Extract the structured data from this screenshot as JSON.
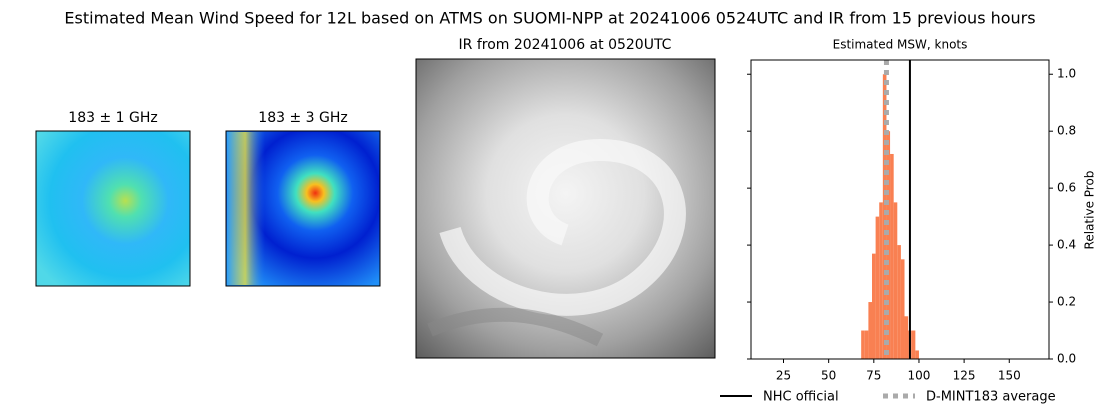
{
  "title": "Estimated Mean Wind Speed for 12L based on ATMS on SUOMI-NPP at 20241006 0524UTC and IR from 15 previous hours",
  "panels": [
    {
      "title": "183 ± 1 GHz"
    },
    {
      "title": "183 ± 3 GHz"
    },
    {
      "title": "IR from 20241006 at 0520UTC"
    }
  ],
  "chart_data": {
    "type": "histogram",
    "title": "Estimated MSW, knots",
    "y_label": "Relative Prob",
    "bins": [
      68,
      70,
      72,
      74,
      76,
      78,
      80,
      82,
      84,
      86,
      88,
      90,
      92,
      94,
      96,
      98,
      100
    ],
    "values": [
      0.1,
      0.1,
      0.2,
      0.37,
      0.5,
      0.55,
      1.0,
      0.8,
      0.72,
      0.55,
      0.4,
      0.35,
      0.15,
      0.1,
      0.1,
      0.03
    ],
    "color": "#f98052",
    "lines": [
      {
        "name": "NHC official",
        "value": 95,
        "color": "#000000",
        "style": "solid"
      },
      {
        "name": "D-MINT183 average",
        "value": 82,
        "color": "#aaaaaa",
        "style": "dotted"
      }
    ],
    "xlim": [
      7,
      172
    ],
    "xticks": [
      25,
      50,
      75,
      100,
      125,
      150
    ],
    "ylim": [
      0,
      1.05
    ],
    "yticks": [
      {
        "value": 0,
        "label": "0.0"
      },
      {
        "value": 0.2,
        "label": "0.2"
      },
      {
        "value": 0.4,
        "label": "0.4"
      },
      {
        "value": 0.6,
        "label": "0.6"
      },
      {
        "value": 0.8,
        "label": "0.8"
      },
      {
        "value": 1.0,
        "label": "1.0"
      }
    ]
  }
}
